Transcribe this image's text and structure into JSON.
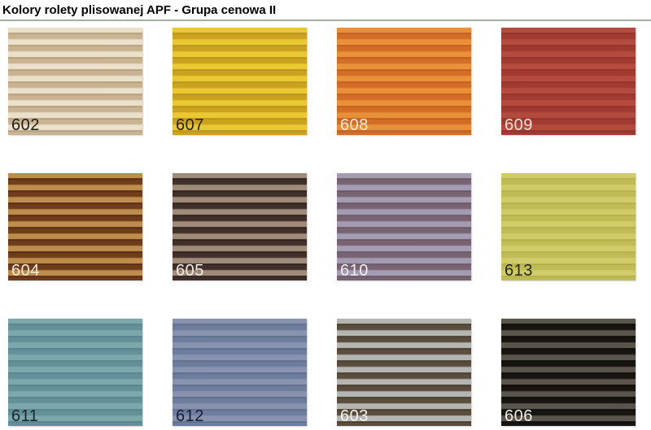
{
  "header": {
    "title": "Kolory rolety plisowanej APF - Grupa cenowa II"
  },
  "colors": {
    "divider": "#9fb19c",
    "page_background": "#ffffff"
  },
  "swatch_grid": {
    "rows": 3,
    "columns": 4,
    "swatches": [
      {
        "code": "602",
        "light": "#ebe1ca",
        "dark": "#c9b392",
        "edge": "#b19d7a",
        "label_color": "#1f1e1a"
      },
      {
        "code": "607",
        "light": "#eac832",
        "dark": "#cba21f",
        "edge": "#b8921a",
        "label_color": "#26200f"
      },
      {
        "code": "608",
        "light": "#ea9039",
        "dark": "#d26d27",
        "edge": "#c05d1f",
        "label_color": "#f6ead8"
      },
      {
        "code": "609",
        "light": "#b54b3e",
        "dark": "#a13b32",
        "edge": "#92322b",
        "label_color": "#f3e0d8"
      },
      {
        "code": "604",
        "light": "#bd8d4c",
        "dark": "#6f3c1c",
        "edge": "#552a10",
        "label_color": "#f5ead7"
      },
      {
        "code": "605",
        "light": "#9f8b79",
        "dark": "#41302a",
        "edge": "#2d201b",
        "label_color": "#f2ece4"
      },
      {
        "code": "610",
        "light": "#a49cb2",
        "dark": "#786373",
        "edge": "#695764",
        "label_color": "#f1edf2"
      },
      {
        "code": "613",
        "light": "#cfcc69",
        "dark": "#bfbc55",
        "edge": "#b2af4a",
        "label_color": "#25251a"
      },
      {
        "code": "611",
        "light": "#7ca7ad",
        "dark": "#649197",
        "edge": "#578289",
        "label_color": "#17272b"
      },
      {
        "code": "612",
        "light": "#8893b0",
        "dark": "#6e7c9d",
        "edge": "#5f6d8d",
        "label_color": "#151d33"
      },
      {
        "code": "603",
        "light": "#b5b5b1",
        "dark": "#5b4d3e",
        "edge": "#44392c",
        "label_color": "#f4f2ec"
      },
      {
        "code": "606",
        "light": "#59554d",
        "dark": "#181410",
        "edge": "#0d0b08",
        "label_color": "#f0eeea"
      }
    ]
  }
}
